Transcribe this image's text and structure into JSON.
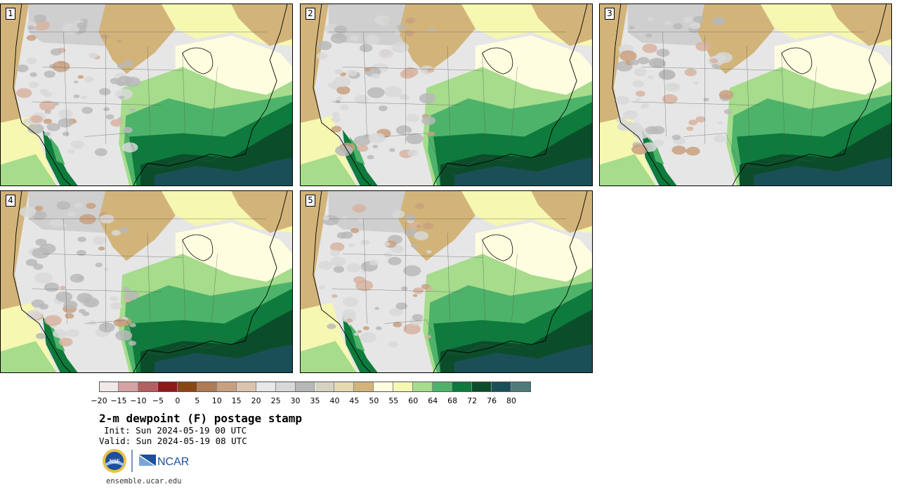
{
  "panels": [
    {
      "number": "1"
    },
    {
      "number": "2"
    },
    {
      "number": "3"
    },
    {
      "number": "4"
    },
    {
      "number": "5"
    }
  ],
  "colorbar": {
    "colors": [
      "#f2e8e8",
      "#d4a3a3",
      "#b35f5f",
      "#8b1a1a",
      "#8b4513",
      "#b07a55",
      "#c9a07f",
      "#dcc3ad",
      "#e8e8e8",
      "#d8d8d8",
      "#b8b8b8",
      "#d6d2c2",
      "#e6dab0",
      "#d2b47a",
      "#fffde0",
      "#f6f7b0",
      "#a6dc8c",
      "#4eb36a",
      "#0e7a3c",
      "#0b4d2a",
      "#1b4f58",
      "#4f7a7a"
    ],
    "tick_labels": [
      "−20",
      "−15",
      "−10",
      "−5",
      "0",
      "5",
      "10",
      "15",
      "20",
      "25",
      "30",
      "35",
      "40",
      "45",
      "50",
      "55",
      "60",
      "64",
      "68",
      "72",
      "76",
      "80"
    ]
  },
  "footer": {
    "title": "2-m dewpoint (F) postage stamp",
    "init": "Init: Sun 2024-05-19 00 UTC",
    "valid": "Valid: Sun 2024-05-19 08 UTC",
    "nsf_label": "NSF",
    "ncar_label": "NCAR",
    "url": "ensemble.ucar.edu"
  },
  "icons": {
    "nsf": "nsf-logo-icon",
    "ncar": "ncar-logo-icon"
  }
}
